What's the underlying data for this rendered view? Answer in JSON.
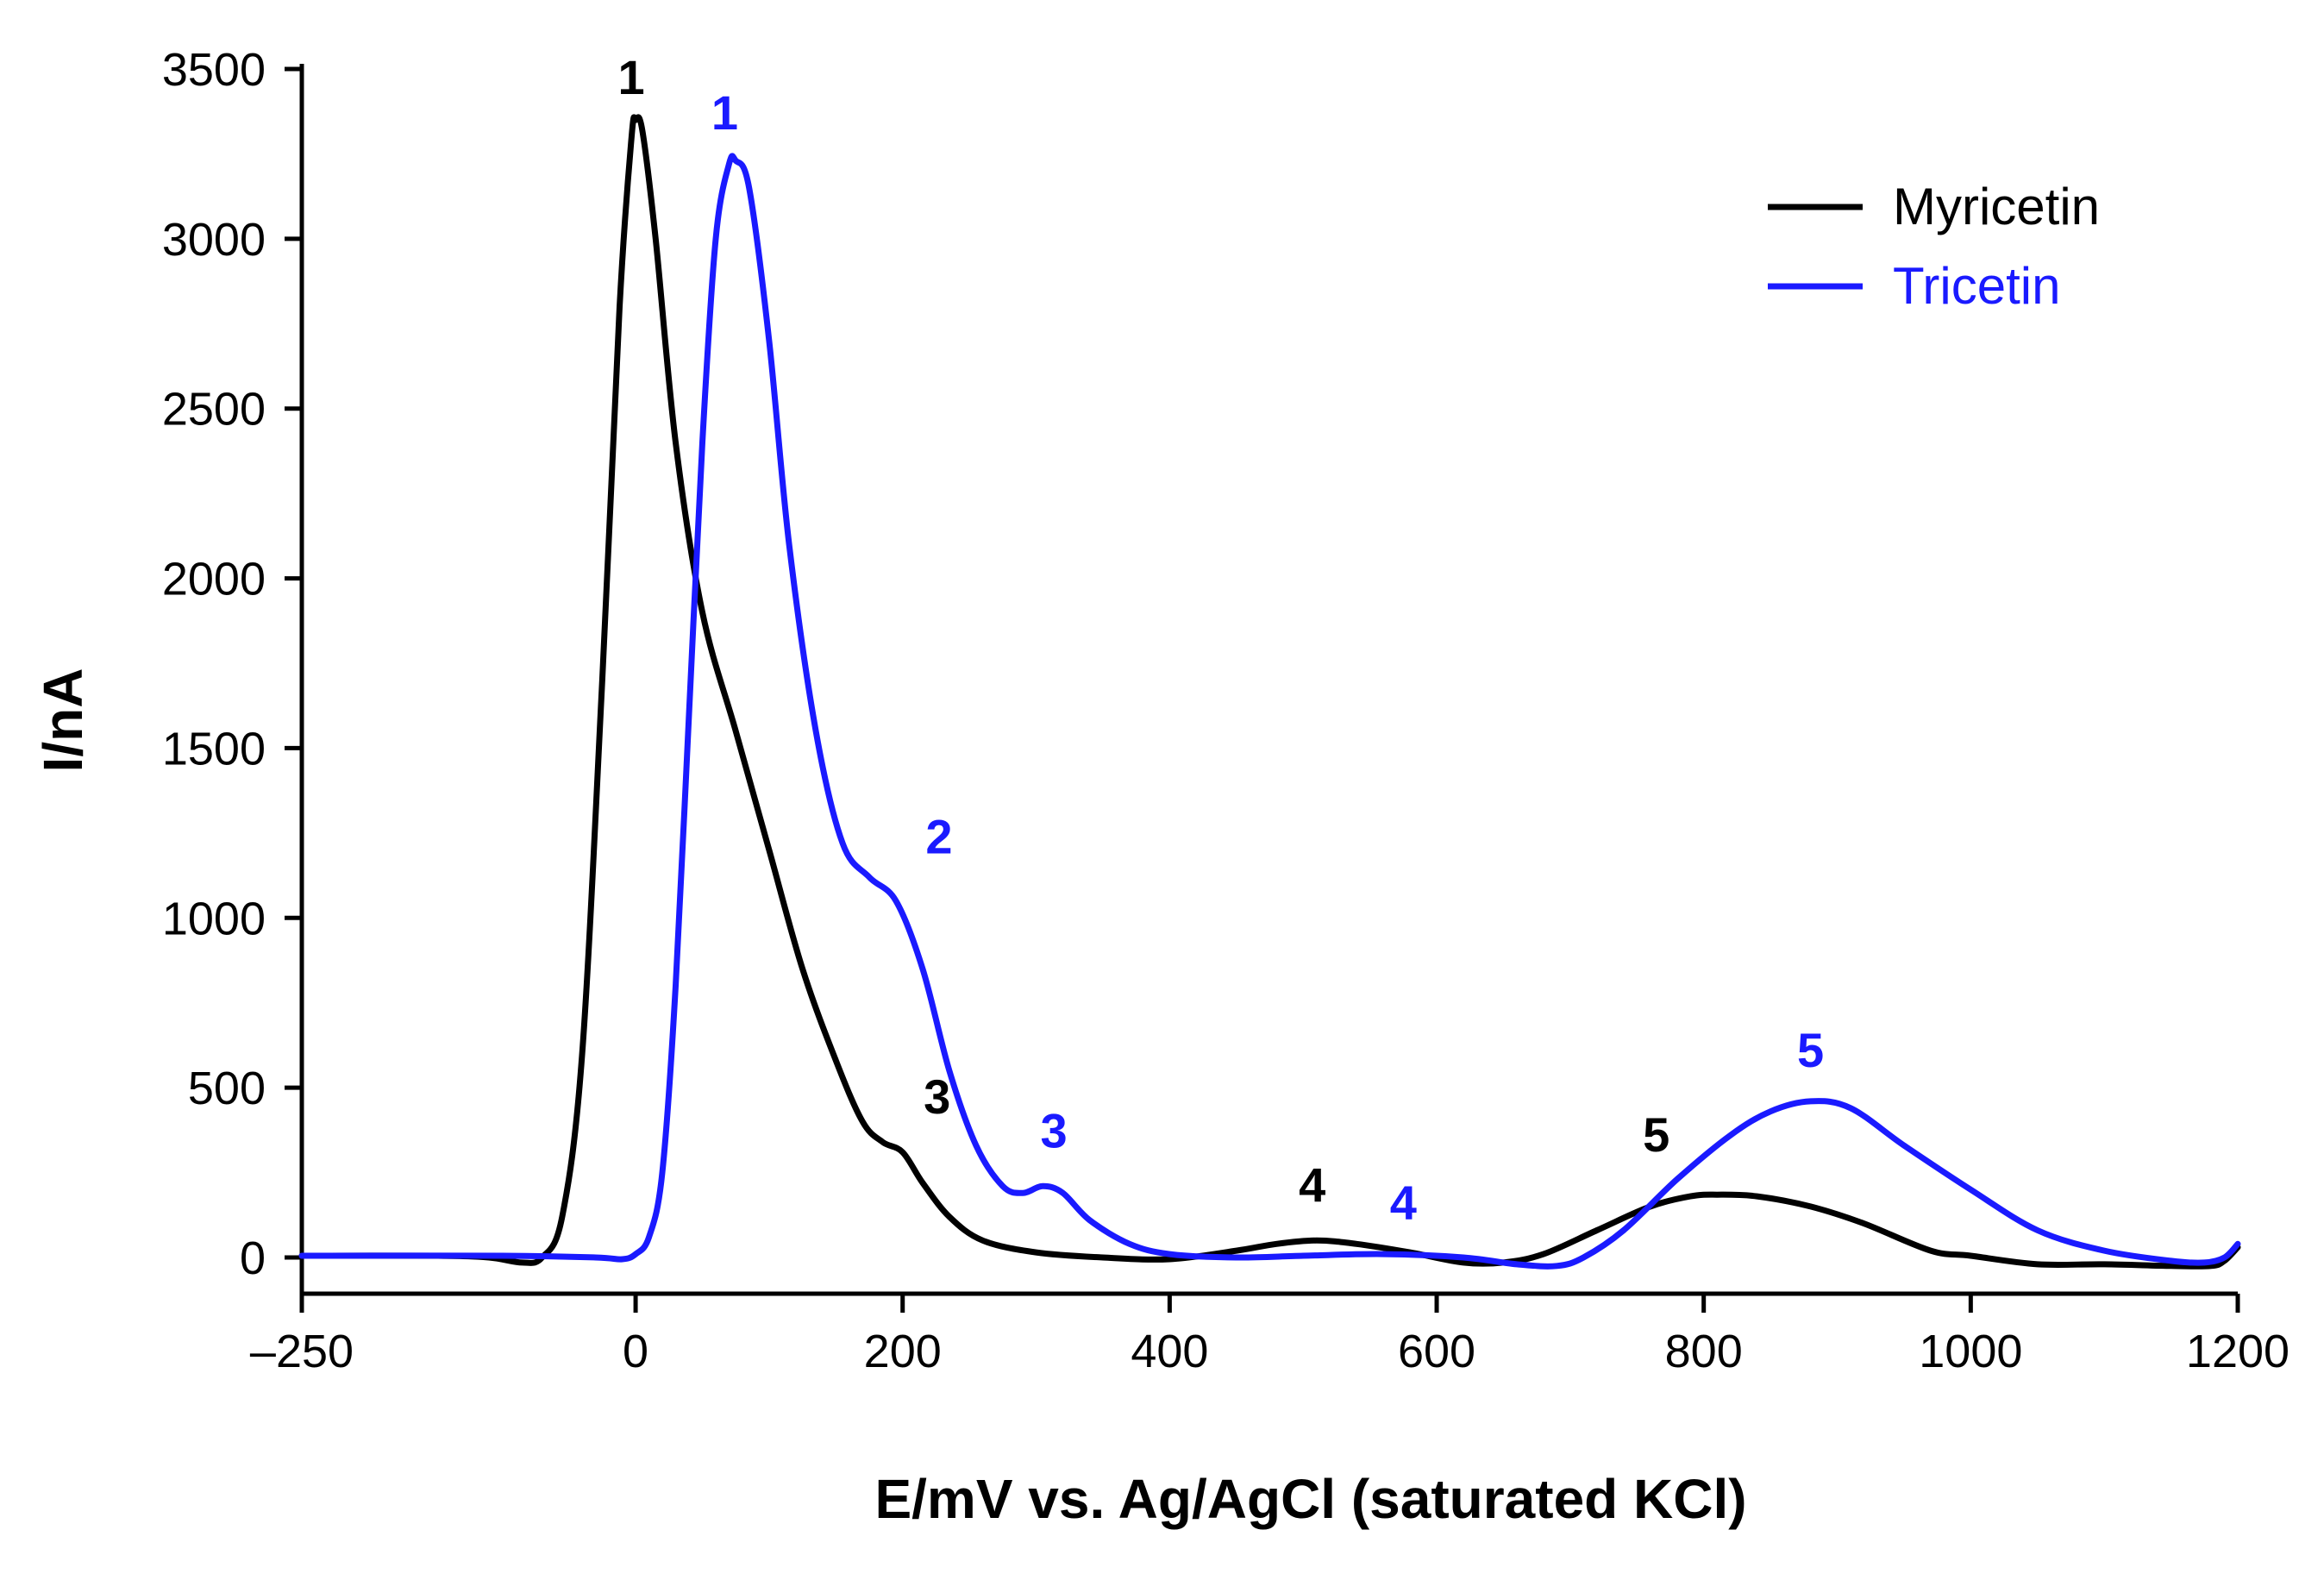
{
  "chart_data": {
    "type": "line",
    "title": "",
    "xlabel": "E/mV vs. Ag/AgCl (saturated KCl)",
    "ylabel": "I/nA",
    "xlim": [
      -250,
      1200
    ],
    "ylim": [
      0,
      3500
    ],
    "x_ticks": [
      {
        "value": -250,
        "label": "–250"
      },
      {
        "value": 0,
        "label": "0"
      },
      {
        "value": 200,
        "label": "200"
      },
      {
        "value": 400,
        "label": "400"
      },
      {
        "value": 600,
        "label": "600"
      },
      {
        "value": 800,
        "label": "800"
      },
      {
        "value": 1000,
        "label": "1000"
      },
      {
        "value": 1200,
        "label": "1200"
      }
    ],
    "y_ticks": [
      {
        "value": 0,
        "label": "0"
      },
      {
        "value": 500,
        "label": "500"
      },
      {
        "value": 1000,
        "label": "1000"
      },
      {
        "value": 1500,
        "label": "1500"
      },
      {
        "value": 2000,
        "label": "2000"
      },
      {
        "value": 2500,
        "label": "2500"
      },
      {
        "value": 3000,
        "label": "3000"
      },
      {
        "value": 3500,
        "label": "3500"
      }
    ],
    "grid": false,
    "legend_position": "top-right",
    "series": [
      {
        "name": "Myricetin",
        "color": "#000000",
        "points": [
          [
            -250,
            5
          ],
          [
            -150,
            5
          ],
          [
            -110,
            0
          ],
          [
            -85,
            -15
          ],
          [
            -70,
            0
          ],
          [
            -55,
            120
          ],
          [
            -40,
            600
          ],
          [
            -25,
            1700
          ],
          [
            -12,
            2800
          ],
          [
            -3,
            3300
          ],
          [
            0,
            3350
          ],
          [
            5,
            3320
          ],
          [
            15,
            3000
          ],
          [
            30,
            2400
          ],
          [
            50,
            1900
          ],
          [
            75,
            1550
          ],
          [
            100,
            1200
          ],
          [
            125,
            850
          ],
          [
            150,
            580
          ],
          [
            170,
            400
          ],
          [
            185,
            340
          ],
          [
            200,
            310
          ],
          [
            215,
            220
          ],
          [
            235,
            120
          ],
          [
            260,
            50
          ],
          [
            300,
            15
          ],
          [
            350,
            0
          ],
          [
            400,
            -5
          ],
          [
            450,
            20
          ],
          [
            480,
            40
          ],
          [
            510,
            50
          ],
          [
            540,
            40
          ],
          [
            580,
            15
          ],
          [
            620,
            -15
          ],
          [
            650,
            -15
          ],
          [
            680,
            10
          ],
          [
            720,
            80
          ],
          [
            760,
            150
          ],
          [
            790,
            180
          ],
          [
            810,
            185
          ],
          [
            840,
            180
          ],
          [
            880,
            150
          ],
          [
            920,
            100
          ],
          [
            970,
            20
          ],
          [
            1000,
            5
          ],
          [
            1050,
            -20
          ],
          [
            1100,
            -20
          ],
          [
            1150,
            -25
          ],
          [
            1180,
            -25
          ],
          [
            1190,
            -10
          ],
          [
            1200,
            30
          ]
        ],
        "peak_labels": [
          {
            "label": "1",
            "x": 0,
            "y": 3350
          },
          {
            "label": "3",
            "x": 200,
            "y": 310
          },
          {
            "label": "4",
            "x": 510,
            "y": 50
          },
          {
            "label": "5",
            "x": 800,
            "y": 185
          }
        ]
      },
      {
        "name": "Tricetin",
        "color": "#1a1aff",
        "points": [
          [
            -250,
            5
          ],
          [
            -100,
            5
          ],
          [
            -30,
            0
          ],
          [
            -10,
            -5
          ],
          [
            0,
            10
          ],
          [
            10,
            60
          ],
          [
            20,
            250
          ],
          [
            30,
            800
          ],
          [
            40,
            1600
          ],
          [
            50,
            2400
          ],
          [
            60,
            3000
          ],
          [
            70,
            3220
          ],
          [
            75,
            3230
          ],
          [
            85,
            3150
          ],
          [
            100,
            2700
          ],
          [
            115,
            2100
          ],
          [
            135,
            1550
          ],
          [
            155,
            1220
          ],
          [
            175,
            1120
          ],
          [
            195,
            1050
          ],
          [
            215,
            850
          ],
          [
            235,
            550
          ],
          [
            255,
            330
          ],
          [
            275,
            210
          ],
          [
            290,
            190
          ],
          [
            305,
            210
          ],
          [
            320,
            190
          ],
          [
            340,
            110
          ],
          [
            370,
            40
          ],
          [
            400,
            10
          ],
          [
            450,
            0
          ],
          [
            500,
            5
          ],
          [
            560,
            10
          ],
          [
            620,
            0
          ],
          [
            660,
            -20
          ],
          [
            690,
            -25
          ],
          [
            710,
            0
          ],
          [
            740,
            80
          ],
          [
            780,
            230
          ],
          [
            820,
            360
          ],
          [
            850,
            430
          ],
          [
            880,
            460
          ],
          [
            910,
            440
          ],
          [
            950,
            330
          ],
          [
            1000,
            200
          ],
          [
            1050,
            80
          ],
          [
            1100,
            20
          ],
          [
            1150,
            -10
          ],
          [
            1175,
            -15
          ],
          [
            1190,
            0
          ],
          [
            1200,
            40
          ]
        ],
        "peak_labels": [
          {
            "label": "1",
            "x": 70,
            "y": 3220
          },
          {
            "label": "2",
            "x": 195,
            "y": 1050
          },
          {
            "label": "3",
            "x": 310,
            "y": 210
          },
          {
            "label": "4",
            "x": 575,
            "y": 10
          },
          {
            "label": "5",
            "x": 880,
            "y": 460
          }
        ]
      }
    ]
  }
}
